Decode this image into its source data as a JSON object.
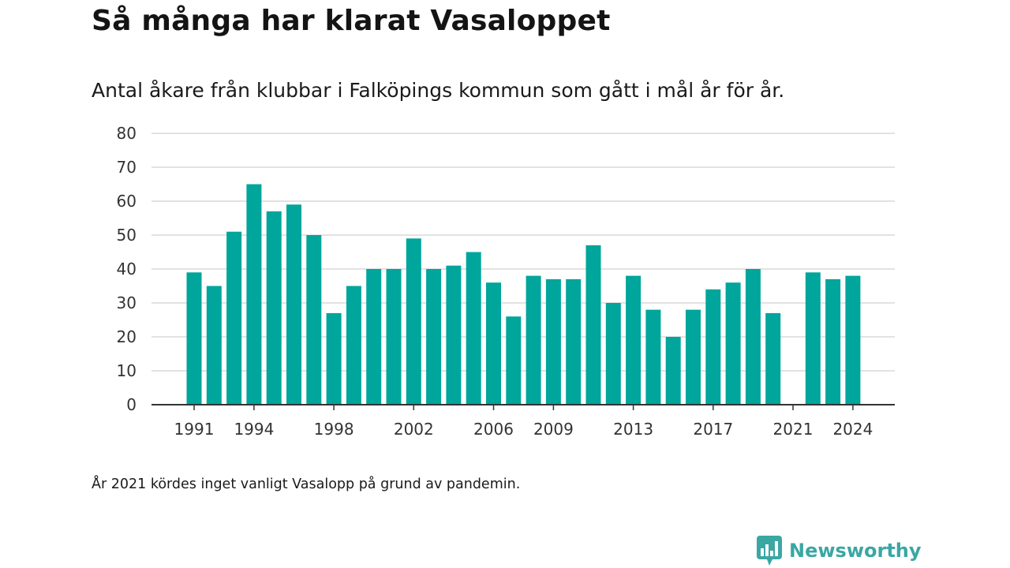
{
  "title": "Så många har klarat Vasaloppet",
  "subtitle": "Antal åkare från klubbar i Falköpings kommun som gått i mål år för år.",
  "footnote": "År 2021 kördes inget vanligt Vasalopp på grund av pandemin.",
  "brand": {
    "name": "Newsworthy",
    "icon": "newsworthy-logo-icon",
    "color": "#3aa7a3"
  },
  "colors": {
    "bar": "#00a59b",
    "grid": "#d9d9d9",
    "axis": "#333333"
  },
  "chart_data": {
    "type": "bar",
    "title": "",
    "xlabel": "",
    "ylabel": "",
    "categories": [
      1991,
      1992,
      1993,
      1994,
      1995,
      1996,
      1997,
      1998,
      1999,
      2000,
      2001,
      2002,
      2003,
      2004,
      2005,
      2006,
      2007,
      2008,
      2009,
      2010,
      2011,
      2012,
      2013,
      2014,
      2015,
      2016,
      2017,
      2018,
      2019,
      2020,
      2021,
      2022,
      2023,
      2024
    ],
    "values": [
      39,
      35,
      51,
      65,
      57,
      59,
      50,
      27,
      35,
      40,
      40,
      49,
      40,
      41,
      45,
      36,
      26,
      38,
      37,
      37,
      47,
      30,
      38,
      28,
      20,
      28,
      34,
      36,
      40,
      27,
      null,
      39,
      37,
      38
    ],
    "ylim": [
      0,
      80
    ],
    "yticks": [
      0,
      10,
      20,
      30,
      40,
      50,
      60,
      70,
      80
    ],
    "xtick_labels": [
      1991,
      1994,
      1998,
      2002,
      2006,
      2009,
      2013,
      2017,
      2021,
      2024
    ],
    "grid": true,
    "legend": "none"
  }
}
